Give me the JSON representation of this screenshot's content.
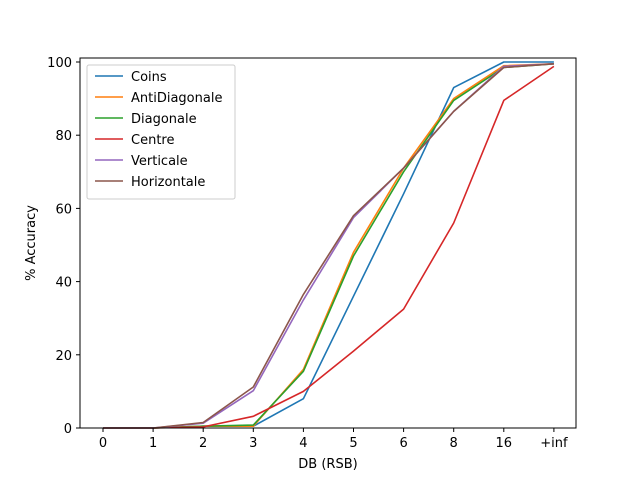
{
  "chart_data": {
    "type": "line",
    "title": "",
    "xlabel": "DB (RSB)",
    "ylabel": "% Accuracy",
    "categories": [
      "0",
      "1",
      "2",
      "3",
      "4",
      "5",
      "6",
      "8",
      "16",
      "+inf"
    ],
    "ylim": [
      0,
      100
    ],
    "yticks": [
      0,
      20,
      40,
      60,
      80,
      100
    ],
    "grid": false,
    "legend_position": "top-left",
    "series": [
      {
        "name": "Coins",
        "color": "#1f77b4",
        "values": [
          0,
          0,
          0.5,
          0.5,
          8,
          36,
          64,
          93,
          100,
          100
        ]
      },
      {
        "name": "AntiDiagonale",
        "color": "#ff7f0e",
        "values": [
          0,
          0,
          0.5,
          0.5,
          16,
          48,
          71,
          90,
          99,
          99.5
        ]
      },
      {
        "name": "Diagonale",
        "color": "#2ca02c",
        "values": [
          0,
          0,
          0.5,
          0.8,
          15.5,
          47,
          70,
          89.5,
          98.5,
          99.5
        ]
      },
      {
        "name": "Centre",
        "color": "#d62728",
        "values": [
          0,
          0,
          0.3,
          3.2,
          10,
          21,
          32.5,
          56,
          89.5,
          98.8
        ]
      },
      {
        "name": "Verticale",
        "color": "#9467bd",
        "values": [
          0,
          0,
          1.3,
          10.2,
          35,
          57.5,
          71,
          86.5,
          98.8,
          99.5
        ]
      },
      {
        "name": "Horizontale",
        "color": "#8c564b",
        "values": [
          0,
          0,
          1.5,
          11.2,
          36.5,
          58,
          71,
          86.5,
          98.5,
          99.5
        ]
      }
    ]
  }
}
